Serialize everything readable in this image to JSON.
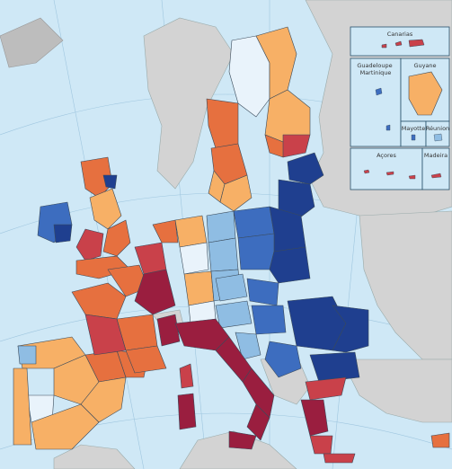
{
  "map": {
    "insets": {
      "canarias": "Canarias",
      "guadeloupe_martinique": "Guadeloupe\nMartinique",
      "guyane": "Guyane",
      "mayotte": "Mayotte",
      "reunion": "Réunion",
      "acores": "Açores",
      "madeira": "Madeira"
    },
    "palette": {
      "c1": "#1f3f8f",
      "c2": "#3d6dbf",
      "c3": "#8fbde3",
      "c4": "#e9f3fb",
      "c5": "#f7b066",
      "c6": "#e6703f",
      "c7": "#c9414a",
      "c8": "#9a1e3f"
    }
  }
}
